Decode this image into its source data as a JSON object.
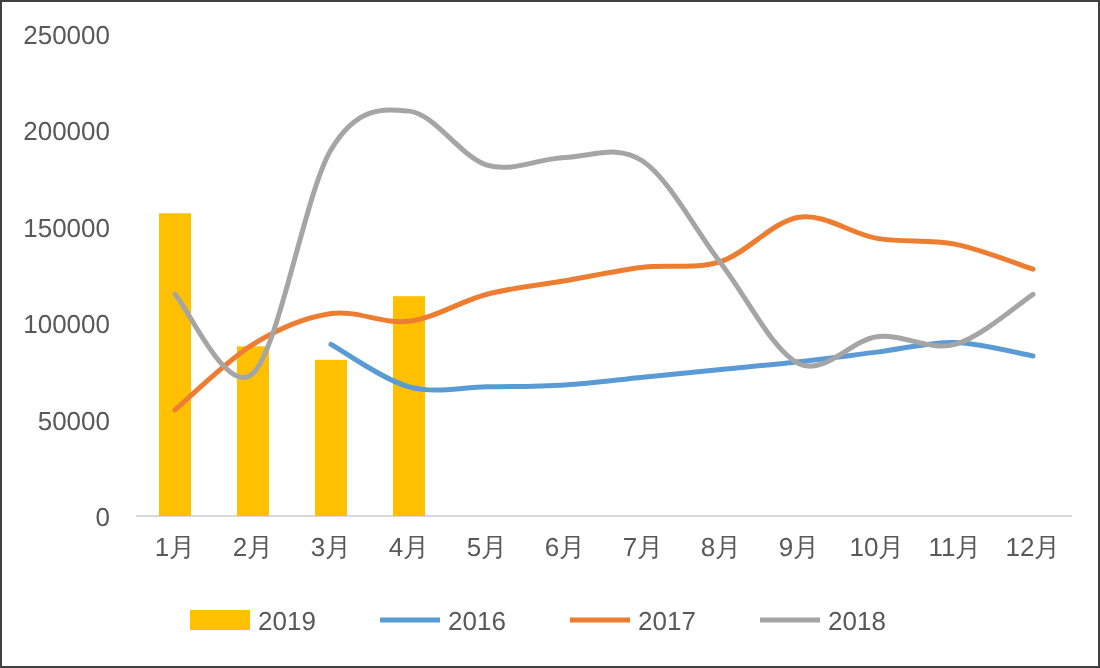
{
  "chart_data": {
    "type": "bar",
    "categories": [
      "1月",
      "2月",
      "3月",
      "4月",
      "5月",
      "6月",
      "7月",
      "8月",
      "9月",
      "10月",
      "11月",
      "12月"
    ],
    "series": [
      {
        "name": "2019",
        "color": "#ffc000",
        "values": [
          157000,
          88000,
          81000,
          114000,
          null,
          null,
          null,
          null,
          null,
          null,
          null,
          null
        ]
      },
      {
        "name": "2016",
        "type": "line",
        "color": "#5b9bd5",
        "values": [
          null,
          null,
          89000,
          67000,
          67000,
          68000,
          72000,
          76000,
          80000,
          85000,
          90000,
          83000
        ]
      },
      {
        "name": "2017",
        "type": "line",
        "color": "#ed7d31",
        "values": [
          55000,
          89000,
          105000,
          101000,
          115000,
          122000,
          129000,
          132000,
          155000,
          144000,
          141000,
          128000
        ]
      },
      {
        "name": "2018",
        "type": "line",
        "color": "#a5a5a5",
        "values": [
          115000,
          74000,
          190000,
          210000,
          182000,
          186000,
          184000,
          131000,
          79000,
          93000,
          89000,
          115000
        ]
      }
    ],
    "ylim": [
      0,
      250000
    ],
    "yticks": [
      0,
      50000,
      100000,
      150000,
      200000,
      250000
    ],
    "grid": false,
    "legend": "bottom"
  }
}
